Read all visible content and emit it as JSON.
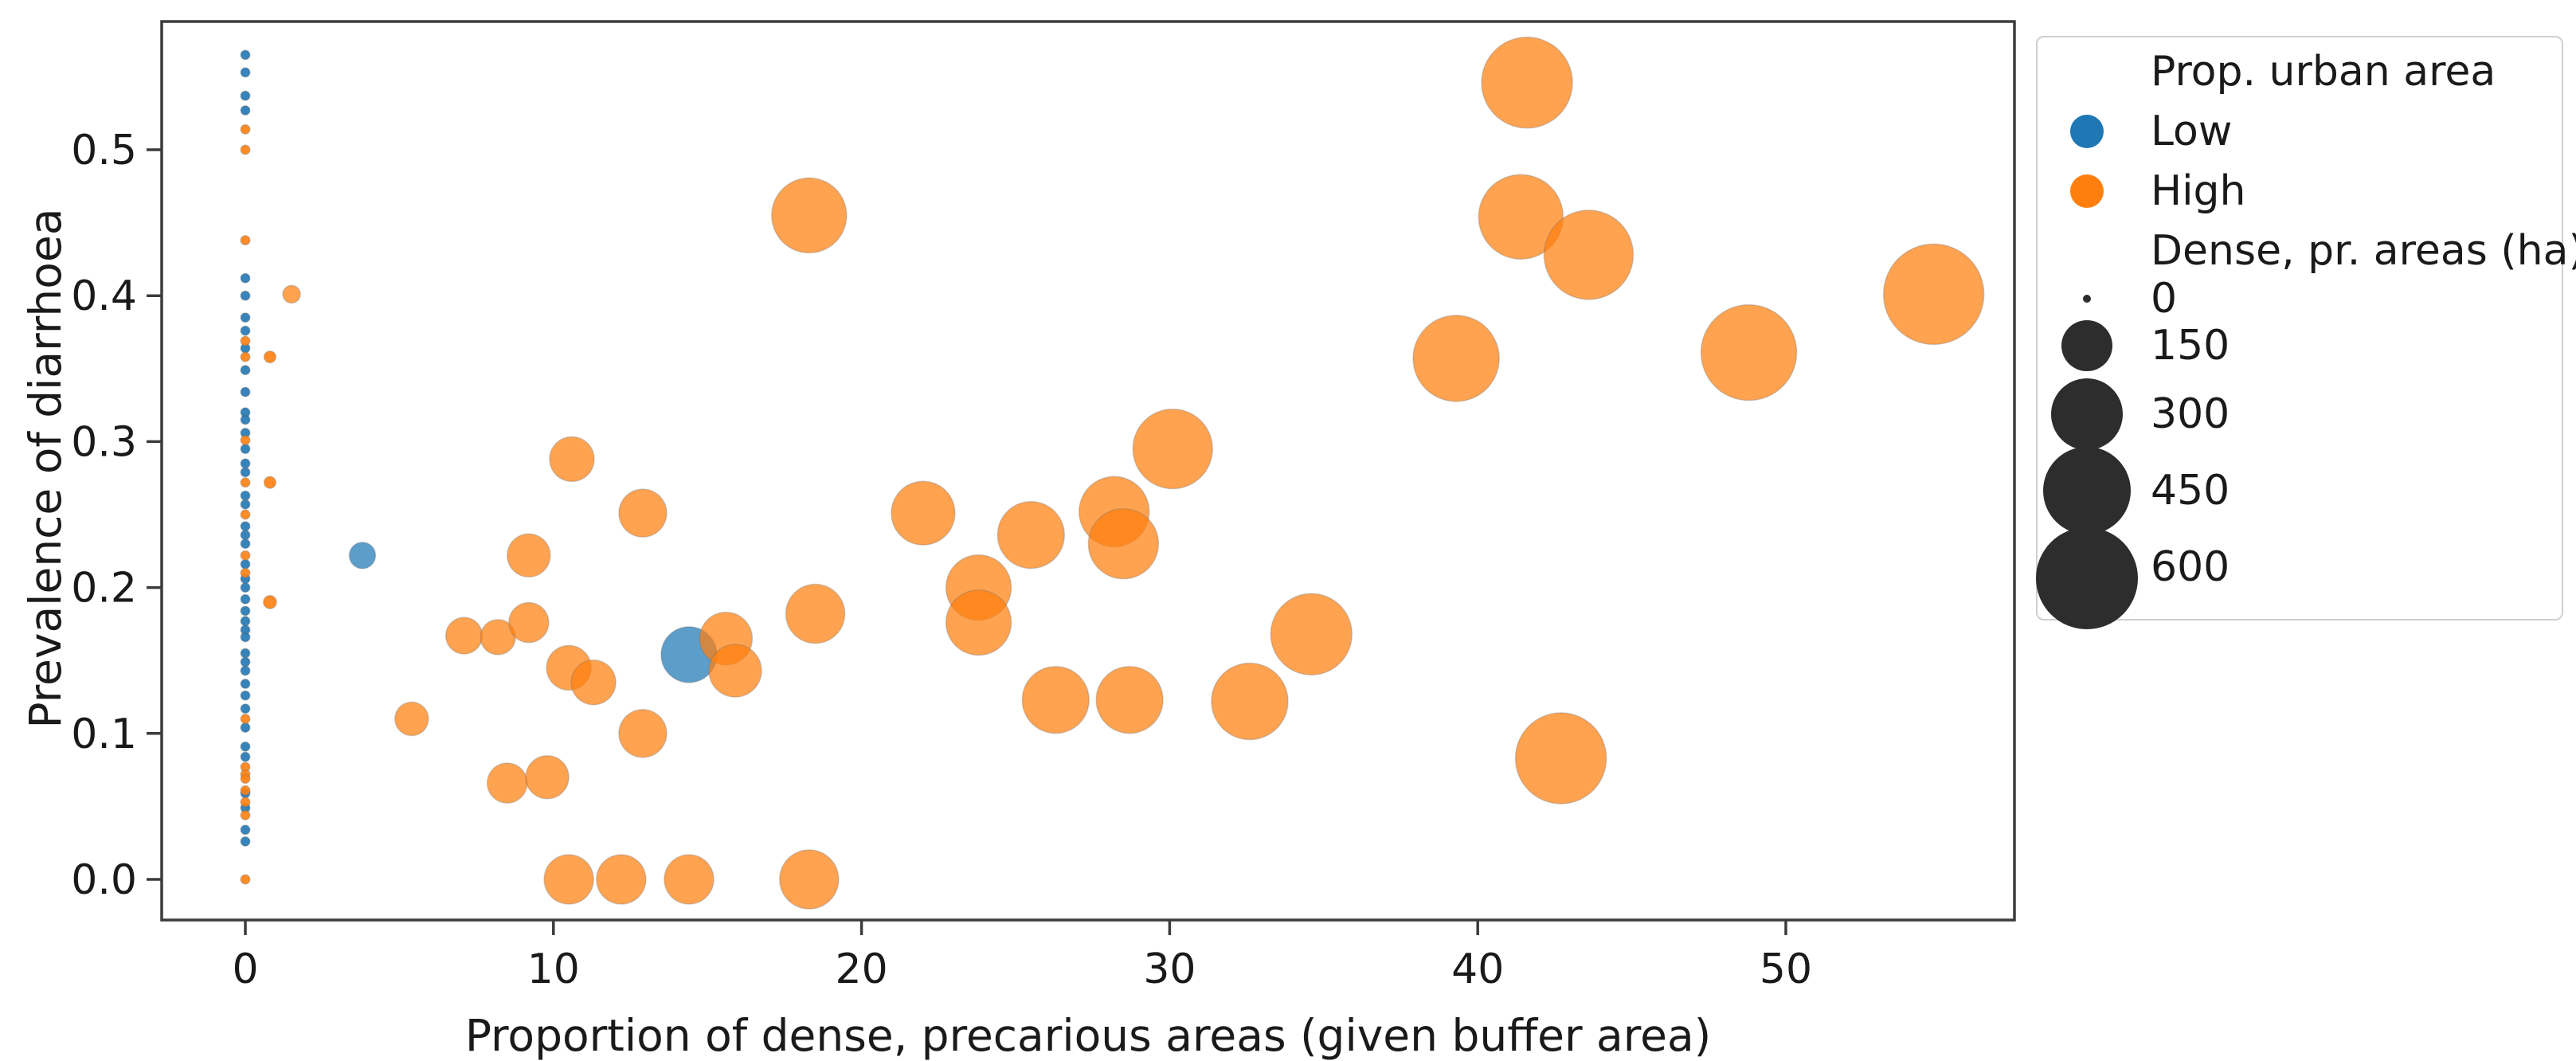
{
  "chart_data": {
    "type": "scatter",
    "title": "",
    "xlabel": "Proportion of dense, precarious areas (given buffer area)",
    "ylabel": "Prevalence of diarrhoea",
    "xlim": [
      -2.7,
      57.4
    ],
    "ylim": [
      -0.028,
      0.588
    ],
    "x_ticks": [
      0,
      10,
      20,
      30,
      40,
      50
    ],
    "y_ticks": [
      0.0,
      0.1,
      0.2,
      0.3,
      0.4,
      0.5
    ],
    "grid": false,
    "legend": {
      "position": "outside-top-right",
      "group_title": "Prop. urban area",
      "groups": [
        {
          "label": "Low",
          "color": "#1f77b4"
        },
        {
          "label": "High",
          "color": "#ff7f0e"
        }
      ],
      "size_title": "Dense, pr. areas (ha)",
      "sizes": [
        0,
        150,
        300,
        450,
        600
      ],
      "size_dot_color": "#2d2d2d"
    },
    "size_unit": "ha",
    "size_scale": {
      "value_at_max": 600,
      "radius_px_at_max": 64
    },
    "series": [
      {
        "name": "Low",
        "color": "#1f77b4",
        "points": [
          {
            "x": 3.8,
            "y": 0.222,
            "s": 40
          },
          {
            "x": 14.4,
            "y": 0.154,
            "s": 180
          },
          {
            "x": 0,
            "y": 0.565,
            "s": 5
          },
          {
            "x": 0,
            "y": 0.553,
            "s": 5
          },
          {
            "x": 0,
            "y": 0.537,
            "s": 5
          },
          {
            "x": 0,
            "y": 0.527,
            "s": 5
          },
          {
            "x": 0,
            "y": 0.412,
            "s": 5
          },
          {
            "x": 0,
            "y": 0.4,
            "s": 5
          },
          {
            "x": 0,
            "y": 0.385,
            "s": 5
          },
          {
            "x": 0,
            "y": 0.376,
            "s": 5
          },
          {
            "x": 0,
            "y": 0.364,
            "s": 5
          },
          {
            "x": 0,
            "y": 0.349,
            "s": 5
          },
          {
            "x": 0,
            "y": 0.334,
            "s": 5
          },
          {
            "x": 0,
            "y": 0.32,
            "s": 5
          },
          {
            "x": 0,
            "y": 0.315,
            "s": 5
          },
          {
            "x": 0,
            "y": 0.306,
            "s": 5
          },
          {
            "x": 0,
            "y": 0.295,
            "s": 5
          },
          {
            "x": 0,
            "y": 0.285,
            "s": 5
          },
          {
            "x": 0,
            "y": 0.279,
            "s": 5
          },
          {
            "x": 0,
            "y": 0.263,
            "s": 5
          },
          {
            "x": 0,
            "y": 0.257,
            "s": 5
          },
          {
            "x": 0,
            "y": 0.242,
            "s": 5
          },
          {
            "x": 0,
            "y": 0.236,
            "s": 5
          },
          {
            "x": 0,
            "y": 0.23,
            "s": 5
          },
          {
            "x": 0,
            "y": 0.216,
            "s": 5
          },
          {
            "x": 0,
            "y": 0.206,
            "s": 5
          },
          {
            "x": 0,
            "y": 0.2,
            "s": 5
          },
          {
            "x": 0,
            "y": 0.192,
            "s": 5
          },
          {
            "x": 0,
            "y": 0.184,
            "s": 5
          },
          {
            "x": 0,
            "y": 0.177,
            "s": 5
          },
          {
            "x": 0,
            "y": 0.171,
            "s": 5
          },
          {
            "x": 0,
            "y": 0.166,
            "s": 5
          },
          {
            "x": 0,
            "y": 0.155,
            "s": 5
          },
          {
            "x": 0,
            "y": 0.149,
            "s": 5
          },
          {
            "x": 0,
            "y": 0.143,
            "s": 5
          },
          {
            "x": 0,
            "y": 0.134,
            "s": 5
          },
          {
            "x": 0,
            "y": 0.126,
            "s": 5
          },
          {
            "x": 0,
            "y": 0.117,
            "s": 5
          },
          {
            "x": 0,
            "y": 0.104,
            "s": 5
          },
          {
            "x": 0,
            "y": 0.091,
            "s": 5
          },
          {
            "x": 0,
            "y": 0.084,
            "s": 5
          },
          {
            "x": 0,
            "y": 0.059,
            "s": 5
          },
          {
            "x": 0,
            "y": 0.049,
            "s": 5
          },
          {
            "x": 0,
            "y": 0.034,
            "s": 5
          },
          {
            "x": 0,
            "y": 0.026,
            "s": 5
          }
        ]
      },
      {
        "name": "High",
        "color": "#ff7f0e",
        "points": [
          {
            "x": 0,
            "y": 0.514,
            "s": 5
          },
          {
            "x": 0,
            "y": 0.5,
            "s": 5
          },
          {
            "x": 0,
            "y": 0.438,
            "s": 5
          },
          {
            "x": 0,
            "y": 0.369,
            "s": 5
          },
          {
            "x": 0,
            "y": 0.358,
            "s": 5
          },
          {
            "x": 0,
            "y": 0.301,
            "s": 5
          },
          {
            "x": 0,
            "y": 0.272,
            "s": 5
          },
          {
            "x": 0,
            "y": 0.25,
            "s": 5
          },
          {
            "x": 0,
            "y": 0.222,
            "s": 5
          },
          {
            "x": 0,
            "y": 0.21,
            "s": 5
          },
          {
            "x": 0,
            "y": 0.11,
            "s": 5
          },
          {
            "x": 0,
            "y": 0.077,
            "s": 5
          },
          {
            "x": 0,
            "y": 0.072,
            "s": 5
          },
          {
            "x": 0,
            "y": 0.069,
            "s": 5
          },
          {
            "x": 0,
            "y": 0.061,
            "s": 5
          },
          {
            "x": 0,
            "y": 0.053,
            "s": 5
          },
          {
            "x": 0,
            "y": 0.044,
            "s": 5
          },
          {
            "x": 0,
            "y": 0.0,
            "s": 5
          },
          {
            "x": 0.8,
            "y": 0.358,
            "s": 8
          },
          {
            "x": 0.8,
            "y": 0.272,
            "s": 8
          },
          {
            "x": 0.8,
            "y": 0.19,
            "s": 10
          },
          {
            "x": 1.5,
            "y": 0.401,
            "s": 18
          },
          {
            "x": 5.4,
            "y": 0.11,
            "s": 65
          },
          {
            "x": 7.1,
            "y": 0.167,
            "s": 77
          },
          {
            "x": 8.2,
            "y": 0.166,
            "s": 71
          },
          {
            "x": 9.2,
            "y": 0.176,
            "s": 92
          },
          {
            "x": 9.2,
            "y": 0.222,
            "s": 107
          },
          {
            "x": 10.6,
            "y": 0.288,
            "s": 115
          },
          {
            "x": 12.9,
            "y": 0.251,
            "s": 132
          },
          {
            "x": 10.5,
            "y": 0.145,
            "s": 115
          },
          {
            "x": 11.3,
            "y": 0.135,
            "s": 115
          },
          {
            "x": 12.9,
            "y": 0.1,
            "s": 132
          },
          {
            "x": 8.5,
            "y": 0.066,
            "s": 92
          },
          {
            "x": 9.8,
            "y": 0.07,
            "s": 107
          },
          {
            "x": 10.5,
            "y": 0.0,
            "s": 141
          },
          {
            "x": 12.2,
            "y": 0.0,
            "s": 141
          },
          {
            "x": 14.4,
            "y": 0.0,
            "s": 141
          },
          {
            "x": 18.3,
            "y": 0.0,
            "s": 201
          },
          {
            "x": 15.6,
            "y": 0.165,
            "s": 160
          },
          {
            "x": 15.9,
            "y": 0.143,
            "s": 160
          },
          {
            "x": 18.5,
            "y": 0.182,
            "s": 201
          },
          {
            "x": 18.3,
            "y": 0.455,
            "s": 324
          },
          {
            "x": 22.0,
            "y": 0.251,
            "s": 234
          },
          {
            "x": 23.8,
            "y": 0.2,
            "s": 246
          },
          {
            "x": 23.8,
            "y": 0.176,
            "s": 246
          },
          {
            "x": 25.5,
            "y": 0.236,
            "s": 258
          },
          {
            "x": 28.2,
            "y": 0.252,
            "s": 284
          },
          {
            "x": 28.5,
            "y": 0.23,
            "s": 284
          },
          {
            "x": 30.1,
            "y": 0.295,
            "s": 366
          },
          {
            "x": 26.3,
            "y": 0.123,
            "s": 258
          },
          {
            "x": 28.7,
            "y": 0.123,
            "s": 258
          },
          {
            "x": 32.6,
            "y": 0.122,
            "s": 338
          },
          {
            "x": 34.6,
            "y": 0.168,
            "s": 381
          },
          {
            "x": 39.3,
            "y": 0.357,
            "s": 428
          },
          {
            "x": 41.6,
            "y": 0.546,
            "s": 477
          },
          {
            "x": 41.4,
            "y": 0.454,
            "s": 412
          },
          {
            "x": 43.6,
            "y": 0.428,
            "s": 460
          },
          {
            "x": 42.7,
            "y": 0.083,
            "s": 477
          },
          {
            "x": 48.8,
            "y": 0.361,
            "s": 528
          },
          {
            "x": 54.8,
            "y": 0.401,
            "s": 582
          }
        ]
      }
    ]
  }
}
